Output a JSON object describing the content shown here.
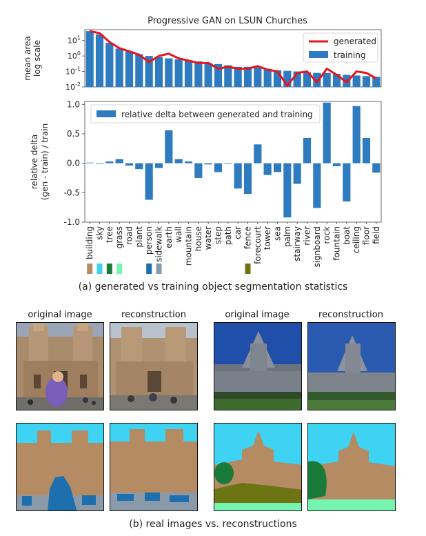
{
  "figure_title": "Progressive GAN on LSUN Churches",
  "caption_a": "(a) generated vs training object segmentation statistics",
  "caption_b": "(b) real images vs. reconstructions",
  "image_labels": [
    "original image",
    "reconstruction",
    "original image",
    "reconstruction"
  ],
  "chart_data": [
    {
      "type": "bar",
      "title": "Progressive GAN on LSUN Churches",
      "ylabel": "mean area\nlog scale",
      "yscale": "log",
      "ylim": [
        0.01,
        50
      ],
      "yticks": [
        "10^1",
        "10^0",
        "10^-1",
        "10^-2"
      ],
      "legend_placement": "top-right",
      "categories": [
        "building",
        "sky",
        "tree",
        "grass",
        "road",
        "plant",
        "person",
        "sidewalk",
        "earth",
        "wall",
        "mountain",
        "house",
        "water",
        "step",
        "path",
        "car",
        "fence",
        "forecourt",
        "tower",
        "sea",
        "palm",
        "stairway",
        "river",
        "signboard",
        "rock",
        "fountain",
        "boat",
        "ceiling",
        "floor",
        "field"
      ],
      "series": [
        {
          "name": "training",
          "kind": "bar",
          "color": "#2f7bbf",
          "values": [
            40,
            25,
            7,
            3,
            2,
            1.3,
            1,
            0.85,
            0.7,
            0.6,
            0.5,
            0.45,
            0.35,
            0.3,
            0.25,
            0.2,
            0.2,
            0.18,
            0.15,
            0.12,
            0.11,
            0.1,
            0.09,
            0.08,
            0.08,
            0.07,
            0.06,
            0.055,
            0.05,
            0.045
          ]
        },
        {
          "name": "generated",
          "kind": "line",
          "color": "#e8141c",
          "values": [
            40,
            30,
            8,
            3.2,
            2,
            1.2,
            0.4,
            1.0,
            1.4,
            0.7,
            0.5,
            0.35,
            0.35,
            0.15,
            0.2,
            0.15,
            0.15,
            0.22,
            0.13,
            0.1,
            0.012,
            0.08,
            0.1,
            0.02,
            0.15,
            0.06,
            0.02,
            0.1,
            0.08,
            0.035
          ]
        }
      ]
    },
    {
      "type": "bar",
      "ylabel": "relative delta\n(gen - train) / train",
      "ylim": [
        -1.0,
        1.05
      ],
      "yticks": [
        1.0,
        0.5,
        0.0,
        -0.5,
        -1.0
      ],
      "ytick_labels": [
        "1.0",
        "0.5",
        "0.0",
        "-0.5",
        "-1.0"
      ],
      "legend_placement": "top-left",
      "categories": [
        "building",
        "sky",
        "tree",
        "grass",
        "road",
        "plant",
        "person",
        "sidewalk",
        "earth",
        "wall",
        "mountain",
        "house",
        "water",
        "step",
        "path",
        "car",
        "fence",
        "forecourt",
        "tower",
        "sea",
        "palm",
        "stairway",
        "river",
        "signboard",
        "rock",
        "fountain",
        "boat",
        "ceiling",
        "floor",
        "field"
      ],
      "series": [
        {
          "name": "relative delta between generated and training",
          "color": "#2f7bbf",
          "values": [
            0.01,
            0.0,
            0.03,
            0.07,
            -0.04,
            -0.1,
            -0.62,
            -0.08,
            0.56,
            0.07,
            0.03,
            -0.25,
            -0.02,
            -0.15,
            -0.01,
            -0.43,
            -0.52,
            0.32,
            -0.2,
            -0.15,
            -0.92,
            -0.35,
            0.43,
            -0.76,
            1.03,
            -0.05,
            -0.65,
            0.97,
            0.43,
            -0.16
          ]
        }
      ]
    }
  ],
  "legend_swatches": [
    {
      "category": "building",
      "color": "#b48b62"
    },
    {
      "category": "sky",
      "color": "#3ed3f3"
    },
    {
      "category": "tree",
      "color": "#1a7a3a"
    },
    {
      "category": "grass",
      "color": "#76f5b0"
    },
    {
      "category": "person",
      "color": "#1e6fad"
    },
    {
      "category": "sidewalk",
      "color": "#8a9aa8"
    },
    {
      "category": "fence",
      "color": "#6d7414"
    }
  ]
}
